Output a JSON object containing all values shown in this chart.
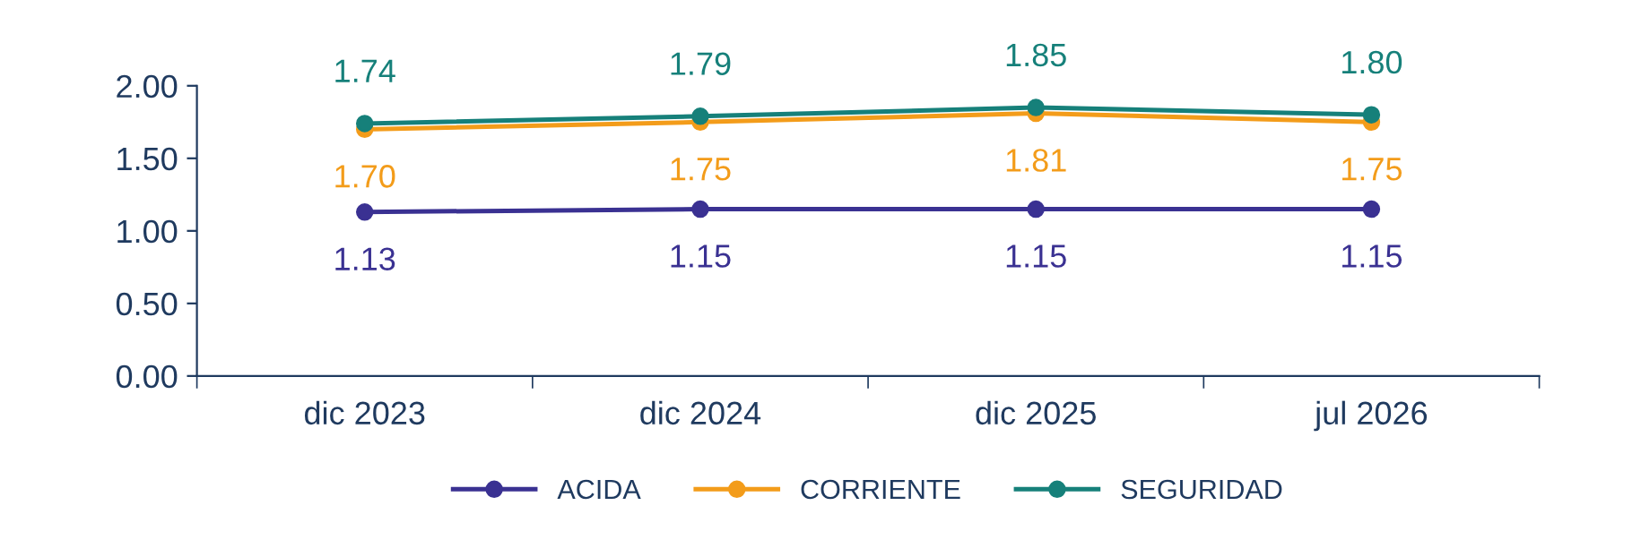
{
  "chart_data": {
    "type": "line",
    "categories": [
      "dic 2023",
      "dic 2024",
      "dic 2025",
      "jul 2026"
    ],
    "series": [
      {
        "name": "ACIDA",
        "color": "#3a3192",
        "values": [
          1.13,
          1.15,
          1.15,
          1.15
        ],
        "value_labels": [
          "1.13",
          "1.15",
          "1.15",
          "1.15"
        ]
      },
      {
        "name": "CORRIENTE",
        "color": "#f39c1a",
        "values": [
          1.7,
          1.75,
          1.81,
          1.75
        ],
        "value_labels": [
          "1.70",
          "1.75",
          "1.81",
          "1.75"
        ]
      },
      {
        "name": "SEGURIDAD",
        "color": "#16807a",
        "values": [
          1.74,
          1.79,
          1.85,
          1.8
        ],
        "value_labels": [
          "1.74",
          "1.79",
          "1.85",
          "1.80"
        ]
      }
    ],
    "ylim": [
      0,
      2
    ],
    "yticks": [
      {
        "value": 0,
        "label": "0.00"
      },
      {
        "value": 0.5,
        "label": "0.50"
      },
      {
        "value": 1,
        "label": "1.00"
      },
      {
        "value": 1.5,
        "label": "1.50"
      },
      {
        "value": 2,
        "label": "2.00"
      }
    ],
    "grid": false,
    "legend": "bottom",
    "marker": "circle",
    "line_style": "solid"
  }
}
